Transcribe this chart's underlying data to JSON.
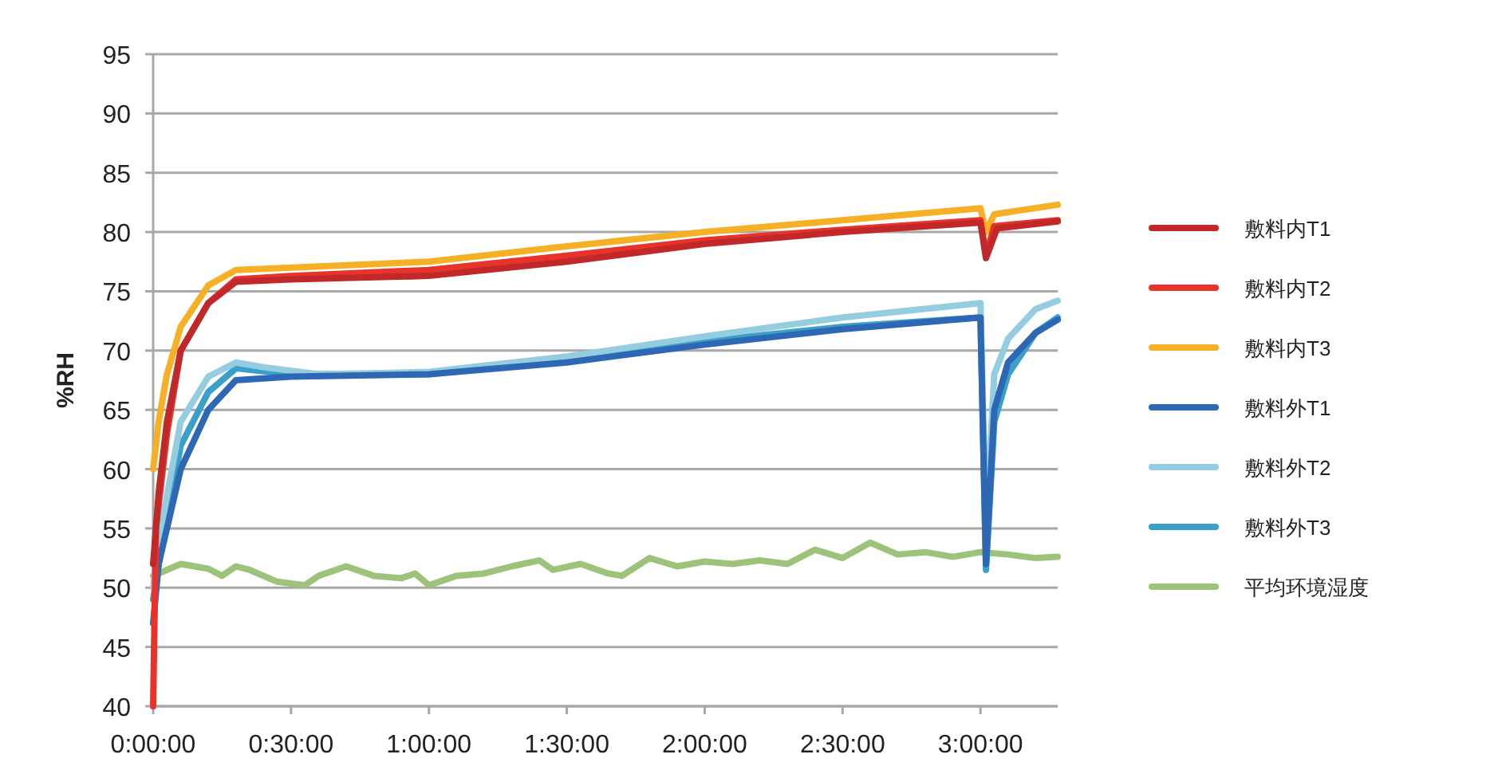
{
  "chart_data": {
    "type": "line",
    "ylabel": "%RH",
    "xlim": [
      0,
      3.28
    ],
    "ylim": [
      40,
      95
    ],
    "xticks": [
      {
        "value": 0,
        "label": "0:00:00"
      },
      {
        "value": 0.5,
        "label": "0:30:00"
      },
      {
        "value": 1,
        "label": "1:00:00"
      },
      {
        "value": 1.5,
        "label": "1:30:00"
      },
      {
        "value": 2,
        "label": "2:00:00"
      },
      {
        "value": 2.5,
        "label": "2:30:00"
      },
      {
        "value": 3,
        "label": "3:00:00"
      }
    ],
    "yticks": [
      40,
      45,
      50,
      55,
      60,
      65,
      70,
      75,
      80,
      85,
      90,
      95
    ],
    "grid": "y",
    "legend": "right",
    "series": [
      {
        "name": "平均环境湿度",
        "color": "#9dc27a",
        "x": [
          0,
          0.05,
          0.1,
          0.15,
          0.2,
          0.25,
          0.3,
          0.35,
          0.45,
          0.55,
          0.6,
          0.7,
          0.8,
          0.9,
          0.95,
          1.0,
          1.1,
          1.2,
          1.3,
          1.4,
          1.45,
          1.55,
          1.65,
          1.7,
          1.8,
          1.9,
          2.0,
          2.1,
          2.2,
          2.3,
          2.4,
          2.5,
          2.6,
          2.7,
          2.8,
          2.9,
          3.0,
          3.1,
          3.2,
          3.28
        ],
        "values": [
          51,
          51.5,
          52,
          51.8,
          51.6,
          51,
          51.8,
          51.5,
          50.5,
          50.2,
          51,
          51.8,
          51,
          50.8,
          51.2,
          50.2,
          51,
          51.2,
          51.8,
          52.3,
          51.5,
          52,
          51.2,
          51,
          52.5,
          51.8,
          52.2,
          52,
          52.3,
          52,
          53.2,
          52.5,
          53.8,
          52.8,
          53,
          52.6,
          53,
          52.8,
          52.5,
          52.6
        ]
      },
      {
        "name": "敷料外T3",
        "color": "#3ba0c9",
        "x": [
          0,
          0.02,
          0.1,
          0.2,
          0.3,
          0.5,
          1.0,
          1.5,
          2.0,
          2.5,
          3.0,
          3.02,
          3.05,
          3.1,
          3.2,
          3.28
        ],
        "values": [
          49,
          52,
          62,
          66.5,
          68.5,
          68,
          68,
          69.2,
          70.8,
          72,
          72.8,
          51.5,
          64,
          68,
          71.5,
          72.8
        ]
      },
      {
        "name": "敷料外T2",
        "color": "#95cde0",
        "x": [
          0,
          0.02,
          0.1,
          0.2,
          0.3,
          0.4,
          0.6,
          1.0,
          1.5,
          2.0,
          2.5,
          3.0,
          3.02,
          3.05,
          3.1,
          3.2,
          3.28
        ],
        "values": [
          50,
          54,
          64,
          67.8,
          69,
          68.6,
          68,
          68.2,
          69.5,
          71.2,
          72.8,
          74,
          55,
          68,
          71,
          73.5,
          74.2
        ]
      },
      {
        "name": "敷料外T1",
        "color": "#2e68b5",
        "x": [
          0,
          0.02,
          0.1,
          0.2,
          0.3,
          0.5,
          1.0,
          1.5,
          2.0,
          2.5,
          3.0,
          3.02,
          3.05,
          3.1,
          3.2,
          3.28
        ],
        "values": [
          47,
          52,
          60,
          65,
          67.5,
          67.8,
          68,
          69,
          70.5,
          71.8,
          72.8,
          52,
          65,
          69,
          71.5,
          72.6
        ]
      },
      {
        "name": "敷料内T3",
        "color": "#f5b025",
        "x": [
          0,
          0.02,
          0.05,
          0.1,
          0.2,
          0.3,
          0.5,
          1.0,
          1.5,
          2.0,
          2.5,
          3.0,
          3.02,
          3.05,
          3.28
        ],
        "values": [
          60,
          64,
          68,
          72,
          75.5,
          76.8,
          77,
          77.5,
          78.8,
          80,
          81,
          82,
          80,
          81.5,
          82.3
        ]
      },
      {
        "name": "敷料内T2",
        "color": "#e8332a",
        "x": [
          0,
          0.01,
          0.05,
          0.1,
          0.2,
          0.3,
          0.5,
          1.0,
          1.5,
          2.0,
          2.5,
          3.0,
          3.02,
          3.05,
          3.28
        ],
        "values": [
          40,
          55,
          63,
          70,
          74,
          76,
          76.3,
          76.8,
          78,
          79.3,
          80.2,
          81,
          78,
          80.5,
          81
        ]
      },
      {
        "name": "敷料内T1",
        "color": "#c0282a",
        "x": [
          0,
          0.02,
          0.05,
          0.1,
          0.2,
          0.3,
          0.5,
          1.0,
          1.5,
          2.0,
          2.5,
          3.0,
          3.02,
          3.06,
          3.28
        ],
        "values": [
          52,
          58,
          64,
          70,
          74,
          75.8,
          76,
          76.3,
          77.5,
          79,
          80,
          80.8,
          77.8,
          80.3,
          80.9
        ]
      }
    ]
  }
}
